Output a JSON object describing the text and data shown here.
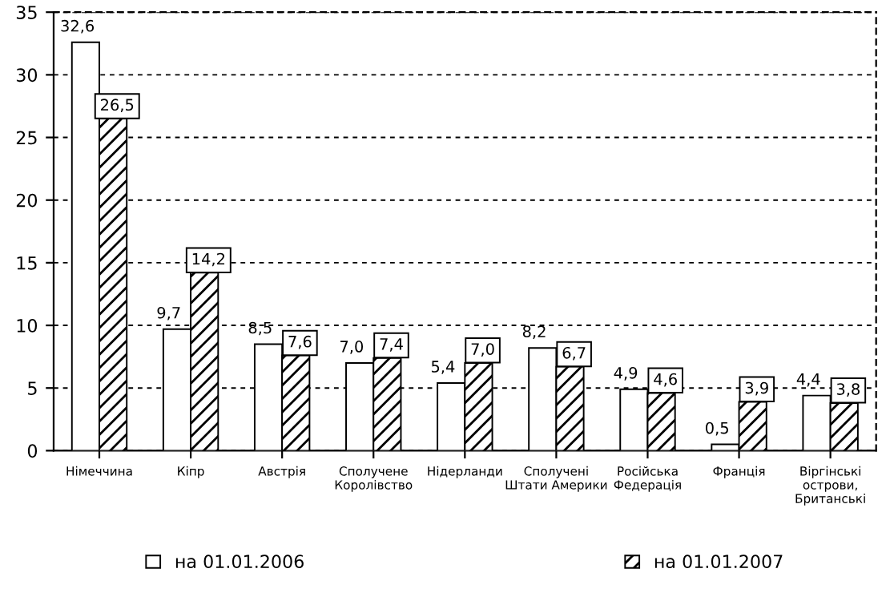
{
  "chart_data": {
    "type": "bar",
    "categories": [
      "Німеччина",
      "Кіпр",
      "Австрія",
      "Сполучене\nКоролівство",
      "Нідерланди",
      "Сполучені\nШтати Америки",
      "Російська\nФедерація",
      "Франція",
      "Віргінські\nострови,\nБританські"
    ],
    "series": [
      {
        "name": "на 01.01.2006",
        "color": "#ffffff",
        "values": [
          32.6,
          9.7,
          8.5,
          7.0,
          5.4,
          8.2,
          4.9,
          0.5,
          4.4
        ],
        "value_labels": [
          "32,6",
          "9,7",
          "8,5",
          "7,0",
          "5,4",
          "8,2",
          "4,9",
          "0,5",
          "4,4"
        ]
      },
      {
        "name": "на 01.01.2007",
        "color": "#000000",
        "values": [
          26.5,
          14.2,
          7.6,
          7.4,
          7.0,
          6.7,
          4.6,
          3.9,
          3.8
        ],
        "value_labels": [
          "26,5",
          "14,2",
          "7,6",
          "7,4",
          "7,0",
          "6,7",
          "4,6",
          "3,9",
          "3,8"
        ]
      }
    ],
    "ylim": [
      0,
      35
    ],
    "yticks": [
      0,
      5,
      10,
      15,
      20,
      25,
      30,
      35
    ],
    "grid": "y",
    "legend": "bottom"
  }
}
